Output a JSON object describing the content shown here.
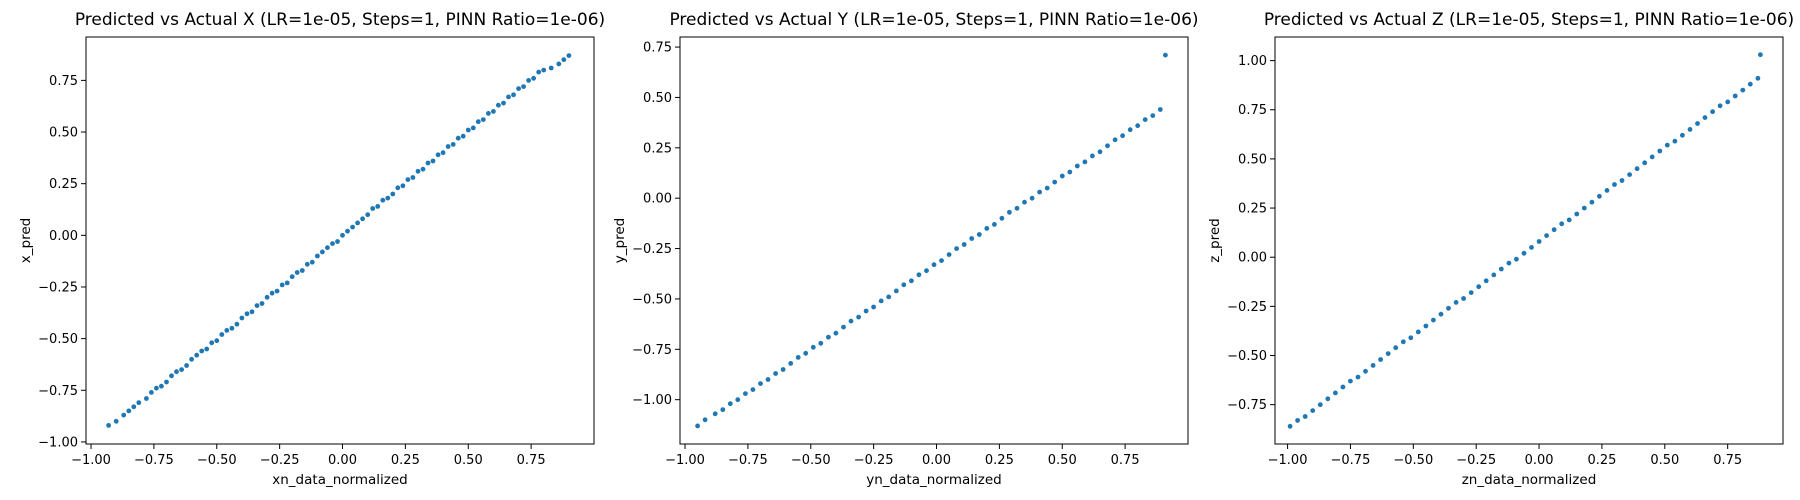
{
  "colors": {
    "points": "#1f77b4"
  },
  "chart_data": [
    {
      "type": "scatter",
      "title": "Predicted vs Actual X (LR=1e-05, Steps=1, PINN Ratio=1e-06)",
      "xlabel": "xn_data_normalized",
      "ylabel": "x_pred",
      "xlim": [
        -1.02,
        1.0
      ],
      "ylim": [
        -1.01,
        0.96
      ],
      "xticks": [
        -1.0,
        -0.75,
        -0.5,
        -0.25,
        0.0,
        0.25,
        0.5,
        0.75
      ],
      "xtick_labels": [
        "−1.00",
        "−0.75",
        "−0.50",
        "−0.25",
        "0.00",
        "0.25",
        "0.50",
        "0.75"
      ],
      "yticks": [
        -1.0,
        -0.75,
        -0.5,
        -0.25,
        0.0,
        0.25,
        0.5,
        0.75
      ],
      "ytick_labels": [
        "−1.00",
        "−0.75",
        "−0.50",
        "−0.25",
        "0.00",
        "0.25",
        "0.50",
        "0.75"
      ],
      "grid": false,
      "points": [
        [
          -0.93,
          -0.92
        ],
        [
          -0.9,
          -0.9
        ],
        [
          -0.87,
          -0.87
        ],
        [
          -0.85,
          -0.85
        ],
        [
          -0.83,
          -0.83
        ],
        [
          -0.81,
          -0.81
        ],
        [
          -0.78,
          -0.79
        ],
        [
          -0.76,
          -0.76
        ],
        [
          -0.74,
          -0.74
        ],
        [
          -0.72,
          -0.73
        ],
        [
          -0.7,
          -0.71
        ],
        [
          -0.68,
          -0.68
        ],
        [
          -0.66,
          -0.66
        ],
        [
          -0.64,
          -0.65
        ],
        [
          -0.62,
          -0.63
        ],
        [
          -0.6,
          -0.6
        ],
        [
          -0.58,
          -0.58
        ],
        [
          -0.56,
          -0.56
        ],
        [
          -0.54,
          -0.55
        ],
        [
          -0.52,
          -0.52
        ],
        [
          -0.5,
          -0.51
        ],
        [
          -0.48,
          -0.48
        ],
        [
          -0.46,
          -0.46
        ],
        [
          -0.44,
          -0.45
        ],
        [
          -0.42,
          -0.43
        ],
        [
          -0.4,
          -0.4
        ],
        [
          -0.38,
          -0.38
        ],
        [
          -0.36,
          -0.37
        ],
        [
          -0.34,
          -0.34
        ],
        [
          -0.32,
          -0.33
        ],
        [
          -0.3,
          -0.3
        ],
        [
          -0.28,
          -0.28
        ],
        [
          -0.26,
          -0.27
        ],
        [
          -0.24,
          -0.24
        ],
        [
          -0.22,
          -0.23
        ],
        [
          -0.2,
          -0.2
        ],
        [
          -0.18,
          -0.18
        ],
        [
          -0.16,
          -0.17
        ],
        [
          -0.14,
          -0.14
        ],
        [
          -0.12,
          -0.13
        ],
        [
          -0.1,
          -0.1
        ],
        [
          -0.08,
          -0.08
        ],
        [
          -0.06,
          -0.06
        ],
        [
          -0.04,
          -0.04
        ],
        [
          -0.02,
          -0.03
        ],
        [
          0.0,
          0.0
        ],
        [
          0.02,
          0.02
        ],
        [
          0.04,
          0.04
        ],
        [
          0.06,
          0.06
        ],
        [
          0.08,
          0.08
        ],
        [
          0.1,
          0.1
        ],
        [
          0.12,
          0.13
        ],
        [
          0.14,
          0.14
        ],
        [
          0.16,
          0.17
        ],
        [
          0.18,
          0.18
        ],
        [
          0.2,
          0.2
        ],
        [
          0.22,
          0.23
        ],
        [
          0.24,
          0.24
        ],
        [
          0.26,
          0.27
        ],
        [
          0.28,
          0.28
        ],
        [
          0.3,
          0.31
        ],
        [
          0.32,
          0.32
        ],
        [
          0.34,
          0.35
        ],
        [
          0.36,
          0.36
        ],
        [
          0.38,
          0.39
        ],
        [
          0.4,
          0.4
        ],
        [
          0.42,
          0.43
        ],
        [
          0.44,
          0.44
        ],
        [
          0.46,
          0.47
        ],
        [
          0.48,
          0.48
        ],
        [
          0.5,
          0.51
        ],
        [
          0.52,
          0.52
        ],
        [
          0.54,
          0.55
        ],
        [
          0.56,
          0.56
        ],
        [
          0.58,
          0.59
        ],
        [
          0.6,
          0.6
        ],
        [
          0.62,
          0.63
        ],
        [
          0.64,
          0.64
        ],
        [
          0.66,
          0.67
        ],
        [
          0.68,
          0.68
        ],
        [
          0.7,
          0.71
        ],
        [
          0.72,
          0.72
        ],
        [
          0.74,
          0.75
        ],
        [
          0.76,
          0.76
        ],
        [
          0.78,
          0.79
        ],
        [
          0.8,
          0.8
        ],
        [
          0.83,
          0.81
        ],
        [
          0.86,
          0.83
        ],
        [
          0.88,
          0.85
        ],
        [
          0.9,
          0.87
        ]
      ]
    },
    {
      "type": "scatter",
      "title": "Predicted vs Actual Y (LR=1e-05, Steps=1, PINN Ratio=1e-06)",
      "xlabel": "yn_data_normalized",
      "ylabel": "y_pred",
      "xlim": [
        -1.02,
        1.0
      ],
      "ylim": [
        -1.22,
        0.8
      ],
      "xticks": [
        -1.0,
        -0.75,
        -0.5,
        -0.25,
        0.0,
        0.25,
        0.5,
        0.75
      ],
      "xtick_labels": [
        "−1.00",
        "−0.75",
        "−0.50",
        "−0.25",
        "0.00",
        "0.25",
        "0.50",
        "0.75"
      ],
      "yticks": [
        -1.0,
        -0.75,
        -0.5,
        -0.25,
        0.0,
        0.25,
        0.5,
        0.75
      ],
      "ytick_labels": [
        "−1.00",
        "−0.75",
        "−0.50",
        "−0.25",
        "0.00",
        "0.25",
        "0.50",
        "0.75"
      ],
      "grid": false,
      "points": [
        [
          -0.95,
          -1.13
        ],
        [
          -0.92,
          -1.1
        ],
        [
          -0.88,
          -1.07
        ],
        [
          -0.85,
          -1.05
        ],
        [
          -0.82,
          -1.02
        ],
        [
          -0.79,
          -1.0
        ],
        [
          -0.76,
          -0.97
        ],
        [
          -0.73,
          -0.95
        ],
        [
          -0.7,
          -0.92
        ],
        [
          -0.67,
          -0.9
        ],
        [
          -0.64,
          -0.87
        ],
        [
          -0.61,
          -0.85
        ],
        [
          -0.58,
          -0.82
        ],
        [
          -0.55,
          -0.79
        ],
        [
          -0.52,
          -0.77
        ],
        [
          -0.49,
          -0.74
        ],
        [
          -0.46,
          -0.72
        ],
        [
          -0.43,
          -0.69
        ],
        [
          -0.4,
          -0.67
        ],
        [
          -0.37,
          -0.64
        ],
        [
          -0.34,
          -0.61
        ],
        [
          -0.31,
          -0.59
        ],
        [
          -0.28,
          -0.56
        ],
        [
          -0.25,
          -0.54
        ],
        [
          -0.22,
          -0.51
        ],
        [
          -0.19,
          -0.49
        ],
        [
          -0.16,
          -0.46
        ],
        [
          -0.13,
          -0.43
        ],
        [
          -0.1,
          -0.41
        ],
        [
          -0.07,
          -0.38
        ],
        [
          -0.04,
          -0.36
        ],
        [
          -0.01,
          -0.33
        ],
        [
          0.02,
          -0.31
        ],
        [
          0.05,
          -0.28
        ],
        [
          0.08,
          -0.25
        ],
        [
          0.11,
          -0.23
        ],
        [
          0.14,
          -0.2
        ],
        [
          0.17,
          -0.18
        ],
        [
          0.2,
          -0.15
        ],
        [
          0.23,
          -0.13
        ],
        [
          0.26,
          -0.1
        ],
        [
          0.29,
          -0.07
        ],
        [
          0.32,
          -0.05
        ],
        [
          0.35,
          -0.02
        ],
        [
          0.38,
          0.0
        ],
        [
          0.41,
          0.03
        ],
        [
          0.44,
          0.05
        ],
        [
          0.47,
          0.08
        ],
        [
          0.5,
          0.11
        ],
        [
          0.53,
          0.13
        ],
        [
          0.56,
          0.16
        ],
        [
          0.59,
          0.18
        ],
        [
          0.62,
          0.21
        ],
        [
          0.65,
          0.23
        ],
        [
          0.68,
          0.26
        ],
        [
          0.71,
          0.29
        ],
        [
          0.74,
          0.31
        ],
        [
          0.77,
          0.34
        ],
        [
          0.8,
          0.36
        ],
        [
          0.83,
          0.39
        ],
        [
          0.86,
          0.41
        ],
        [
          0.89,
          0.44
        ],
        [
          0.91,
          0.71
        ]
      ]
    },
    {
      "type": "scatter",
      "title": "Predicted vs Actual Z (LR=1e-05, Steps=1, PINN Ratio=1e-06)",
      "xlabel": "zn_data_normalized",
      "ylabel": "z_pred",
      "xlim": [
        -1.05,
        0.97
      ],
      "ylim": [
        -0.95,
        1.12
      ],
      "xticks": [
        -1.0,
        -0.75,
        -0.5,
        -0.25,
        0.0,
        0.25,
        0.5,
        0.75
      ],
      "xtick_labels": [
        "−1.00",
        "−0.75",
        "−0.50",
        "−0.25",
        "0.00",
        "0.25",
        "0.50",
        "0.75"
      ],
      "yticks": [
        -0.75,
        -0.5,
        -0.25,
        0.0,
        0.25,
        0.5,
        0.75,
        1.0
      ],
      "ytick_labels": [
        "−0.75",
        "−0.50",
        "−0.25",
        "0.00",
        "0.25",
        "0.50",
        "0.75",
        "1.00"
      ],
      "grid": false,
      "points": [
        [
          -0.99,
          -0.86
        ],
        [
          -0.96,
          -0.83
        ],
        [
          -0.93,
          -0.81
        ],
        [
          -0.9,
          -0.78
        ],
        [
          -0.87,
          -0.75
        ],
        [
          -0.84,
          -0.72
        ],
        [
          -0.81,
          -0.69
        ],
        [
          -0.78,
          -0.66
        ],
        [
          -0.75,
          -0.63
        ],
        [
          -0.72,
          -0.61
        ],
        [
          -0.69,
          -0.58
        ],
        [
          -0.66,
          -0.55
        ],
        [
          -0.63,
          -0.52
        ],
        [
          -0.6,
          -0.49
        ],
        [
          -0.57,
          -0.46
        ],
        [
          -0.54,
          -0.43
        ],
        [
          -0.51,
          -0.41
        ],
        [
          -0.48,
          -0.38
        ],
        [
          -0.45,
          -0.35
        ],
        [
          -0.42,
          -0.32
        ],
        [
          -0.39,
          -0.29
        ],
        [
          -0.36,
          -0.26
        ],
        [
          -0.33,
          -0.23
        ],
        [
          -0.3,
          -0.21
        ],
        [
          -0.27,
          -0.18
        ],
        [
          -0.24,
          -0.15
        ],
        [
          -0.21,
          -0.12
        ],
        [
          -0.18,
          -0.09
        ],
        [
          -0.15,
          -0.06
        ],
        [
          -0.12,
          -0.03
        ],
        [
          -0.09,
          -0.01
        ],
        [
          -0.06,
          0.02
        ],
        [
          -0.03,
          0.05
        ],
        [
          0.0,
          0.08
        ],
        [
          0.03,
          0.11
        ],
        [
          0.06,
          0.14
        ],
        [
          0.09,
          0.17
        ],
        [
          0.12,
          0.19
        ],
        [
          0.15,
          0.22
        ],
        [
          0.18,
          0.25
        ],
        [
          0.21,
          0.28
        ],
        [
          0.24,
          0.31
        ],
        [
          0.27,
          0.34
        ],
        [
          0.3,
          0.37
        ],
        [
          0.33,
          0.39
        ],
        [
          0.36,
          0.42
        ],
        [
          0.39,
          0.45
        ],
        [
          0.42,
          0.48
        ],
        [
          0.45,
          0.51
        ],
        [
          0.48,
          0.54
        ],
        [
          0.51,
          0.57
        ],
        [
          0.54,
          0.59
        ],
        [
          0.57,
          0.62
        ],
        [
          0.6,
          0.65
        ],
        [
          0.63,
          0.68
        ],
        [
          0.66,
          0.71
        ],
        [
          0.69,
          0.74
        ],
        [
          0.72,
          0.77
        ],
        [
          0.75,
          0.79
        ],
        [
          0.78,
          0.82
        ],
        [
          0.81,
          0.85
        ],
        [
          0.84,
          0.88
        ],
        [
          0.87,
          0.91
        ],
        [
          0.88,
          1.03
        ]
      ]
    }
  ]
}
